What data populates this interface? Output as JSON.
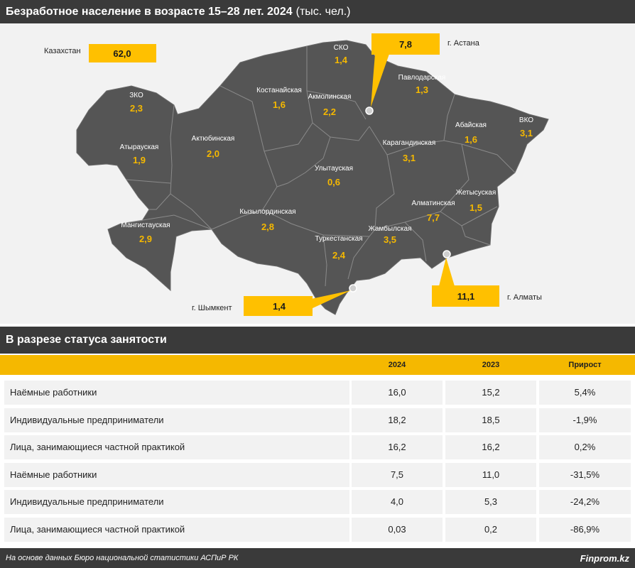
{
  "header": {
    "title": "Безработное население в возрасте 15–28 лет. 2024",
    "unit": "(тыс. чел.)"
  },
  "map": {
    "total": {
      "label": "Казахстан",
      "value": "62,0"
    },
    "regions": [
      {
        "name": "ЗКО",
        "value": "2,3"
      },
      {
        "name": "Атырауская",
        "value": "1,9"
      },
      {
        "name": "Мангистауская",
        "value": "2,9"
      },
      {
        "name": "Актюбинская",
        "value": "2,0"
      },
      {
        "name": "Костанайская",
        "value": "1,6"
      },
      {
        "name": "СКО",
        "value": "1,4"
      },
      {
        "name": "Акмолинская",
        "value": "2,2"
      },
      {
        "name": "Павлодарская",
        "value": "1,3"
      },
      {
        "name": "Улытауская",
        "value": "0,6"
      },
      {
        "name": "Карагандинская",
        "value": "3,1"
      },
      {
        "name": "Абайская",
        "value": "1,6"
      },
      {
        "name": "ВКО",
        "value": "3,1"
      },
      {
        "name": "Кызылординская",
        "value": "2,8"
      },
      {
        "name": "Туркестанская",
        "value": "2,4"
      },
      {
        "name": "Жамбылская",
        "value": "3,5"
      },
      {
        "name": "Алматинская",
        "value": "7,7"
      },
      {
        "name": "Жетысуская",
        "value": "1,5"
      }
    ],
    "cities": [
      {
        "name": "г. Астана",
        "value": "7,8"
      },
      {
        "name": "г. Шымкент",
        "value": "1,4"
      },
      {
        "name": "г. Алматы",
        "value": "11,1"
      }
    ],
    "colors": {
      "land": "#555555",
      "border": "#8a8a8a",
      "value": "#f5b800",
      "callout": "#ffc000"
    }
  },
  "status_section": {
    "title": "В разрезе статуса занятости",
    "columns": [
      "2024",
      "2023",
      "Прирост"
    ],
    "rows": [
      {
        "label": "Наёмные работники",
        "v2024": "16,0",
        "v2023": "15,2",
        "growth": "5,4%"
      },
      {
        "label": "Индивидуальные предприниматели",
        "v2024": "18,2",
        "v2023": "18,5",
        "growth": "-1,9%"
      },
      {
        "label": "Лица, занимающиеся частной практикой",
        "v2024": "16,2",
        "v2023": "16,2",
        "growth": "0,2%"
      },
      {
        "label": "Наёмные работники",
        "v2024": "7,5",
        "v2023": "11,0",
        "growth": "-31,5%"
      },
      {
        "label": "Индивидуальные предприниматели",
        "v2024": "4,0",
        "v2023": "5,3",
        "growth": "-24,2%"
      },
      {
        "label": "Лица, занимающиеся частной практикой",
        "v2024": "0,03",
        "v2023": "0,2",
        "growth": "-86,9%"
      }
    ]
  },
  "footer": {
    "source": "На основе данных Бюро национальной статистики АСПиР РК",
    "brand": "Finprom.kz"
  }
}
